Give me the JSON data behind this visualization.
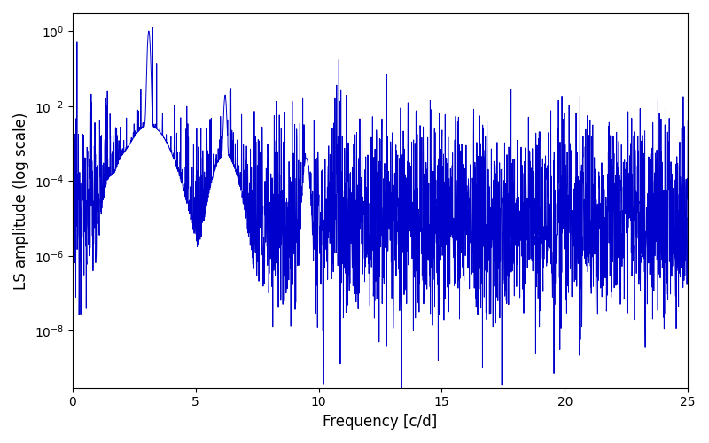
{
  "title": "",
  "xlabel": "Frequency [c/d]",
  "ylabel": "LS amplitude (log scale)",
  "line_color": "#0000cc",
  "line_width": 0.7,
  "freq_min": 0,
  "freq_max": 25,
  "ylim_min": 3e-10,
  "ylim_max": 3,
  "yticks": [
    1e-08,
    1e-06,
    0.0001,
    0.01,
    1.0
  ],
  "xticks": [
    0,
    5,
    10,
    15,
    20,
    25
  ],
  "figsize": [
    8.0,
    5.0
  ],
  "dpi": 100,
  "seed": 12345,
  "n_points": 3000,
  "bg_color": "#ffffff"
}
